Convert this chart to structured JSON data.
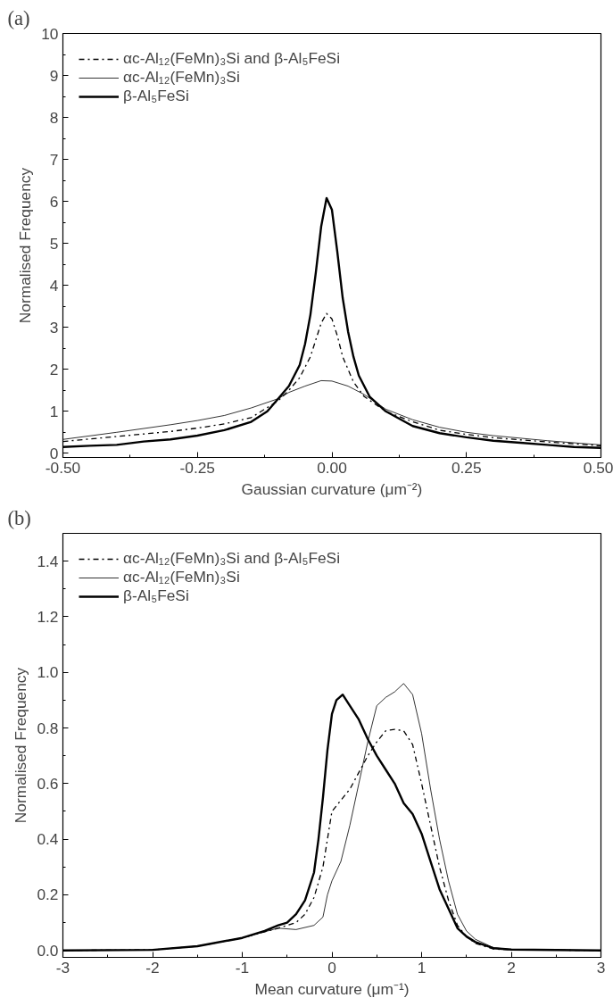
{
  "chart_data": [
    {
      "type": "line",
      "xlabel": "Gaussian curvature (μm⁻²)",
      "ylabel": "Normalised Frequency",
      "annotations": [
        "(a)"
      ],
      "xlim": [
        -0.5,
        0.5
      ],
      "ylim": [
        -0.1,
        10
      ],
      "xticks": [
        {
          "value": -0.5,
          "label": "-0.50"
        },
        {
          "value": -0.375,
          "label": null
        },
        {
          "value": -0.25,
          "label": "-0.25"
        },
        {
          "value": -0.125,
          "label": null
        },
        {
          "value": 0,
          "label": "0.00"
        },
        {
          "value": 0.125,
          "label": null
        },
        {
          "value": 0.25,
          "label": "0.25"
        },
        {
          "value": 0.375,
          "label": null
        },
        {
          "value": 0.5,
          "label": "0.50"
        }
      ],
      "yticks": [
        0,
        {
          "value": 0.5,
          "label": null
        },
        1,
        {
          "value": 1.5,
          "label": null
        },
        2,
        {
          "value": 2.5,
          "label": null
        },
        3,
        {
          "value": 3.5,
          "label": null
        },
        4,
        {
          "value": 4.5,
          "label": null
        },
        5,
        {
          "value": 5.5,
          "label": null
        },
        6,
        {
          "value": 6.5,
          "label": null
        },
        7,
        {
          "value": 7.5,
          "label": null
        },
        8,
        {
          "value": 8.5,
          "label": null
        },
        9,
        {
          "value": 9.5,
          "label": null
        },
        10
      ],
      "grid": false,
      "legend": "top left",
      "series": [
        {
          "name": "αc-Al₁₂(FeMn)₃Si and β-Al₅FeSi",
          "color": "#000000",
          "line_style": "dashdot",
          "x": [
            -0.5,
            -0.4,
            -0.3,
            -0.25,
            -0.2,
            -0.15,
            -0.1,
            -0.08,
            -0.06,
            -0.04,
            -0.03,
            -0.02,
            -0.01,
            0.0,
            0.01,
            0.02,
            0.04,
            0.06,
            0.1,
            0.15,
            0.2,
            0.25,
            0.3,
            0.4,
            0.5
          ],
          "values": [
            0.28,
            0.4,
            0.52,
            0.6,
            0.7,
            0.85,
            1.25,
            1.5,
            1.8,
            2.3,
            2.7,
            3.1,
            3.33,
            3.2,
            2.8,
            2.3,
            1.7,
            1.35,
            1.0,
            0.75,
            0.55,
            0.45,
            0.37,
            0.27,
            0.18
          ]
        },
        {
          "name": "αc-Al₁₂(FeMn)₃Si",
          "color": "#000000",
          "line_style": "solid",
          "x": [
            -0.5,
            -0.4,
            -0.3,
            -0.25,
            -0.2,
            -0.15,
            -0.1,
            -0.08,
            -0.05,
            -0.02,
            0.0,
            0.03,
            0.06,
            0.1,
            0.15,
            0.2,
            0.25,
            0.3,
            0.4,
            0.5
          ],
          "values": [
            0.33,
            0.5,
            0.68,
            0.78,
            0.9,
            1.08,
            1.3,
            1.45,
            1.6,
            1.73,
            1.72,
            1.6,
            1.4,
            1.05,
            0.8,
            0.62,
            0.5,
            0.42,
            0.3,
            0.2
          ]
        },
        {
          "name": "β-Al₅FeSi",
          "color": "#000000",
          "line_style": "solid",
          "x": [
            -0.5,
            -0.45,
            -0.4,
            -0.35,
            -0.3,
            -0.25,
            -0.2,
            -0.15,
            -0.12,
            -0.1,
            -0.08,
            -0.06,
            -0.05,
            -0.04,
            -0.03,
            -0.02,
            -0.01,
            0.0,
            0.01,
            0.02,
            0.03,
            0.04,
            0.05,
            0.07,
            0.1,
            0.15,
            0.2,
            0.25,
            0.3,
            0.35,
            0.4,
            0.45,
            0.5
          ],
          "values": [
            0.15,
            0.18,
            0.2,
            0.28,
            0.33,
            0.42,
            0.55,
            0.75,
            1.0,
            1.3,
            1.6,
            2.1,
            2.6,
            3.3,
            4.3,
            5.4,
            6.08,
            5.8,
            4.8,
            3.7,
            2.9,
            2.3,
            1.85,
            1.35,
            1.0,
            0.65,
            0.48,
            0.38,
            0.3,
            0.25,
            0.2,
            0.15,
            0.13
          ]
        }
      ]
    },
    {
      "type": "line",
      "xlabel": "Mean curvature (μm⁻¹)",
      "ylabel": "Normalised Frequency",
      "annotations": [
        "(b)"
      ],
      "xlim": [
        -3,
        3
      ],
      "ylim": [
        -0.025,
        1.5
      ],
      "xticks": [
        -3,
        {
          "value": -2.5,
          "label": null
        },
        -2,
        {
          "value": -1.5,
          "label": null
        },
        -1,
        {
          "value": -0.5,
          "label": null
        },
        0,
        {
          "value": 0.5,
          "label": null
        },
        1,
        {
          "value": 1.5,
          "label": null
        },
        2,
        {
          "value": 2.5,
          "label": null
        },
        3
      ],
      "yticks": [
        {
          "value": 0,
          "label": "0.0"
        },
        {
          "value": 0.1,
          "label": null
        },
        {
          "value": 0.2,
          "label": "0.2"
        },
        {
          "value": 0.3,
          "label": null
        },
        {
          "value": 0.4,
          "label": "0.4"
        },
        {
          "value": 0.5,
          "label": null
        },
        {
          "value": 0.6,
          "label": "0.6"
        },
        {
          "value": 0.7,
          "label": null
        },
        {
          "value": 0.8,
          "label": "0.8"
        },
        {
          "value": 0.9,
          "label": null
        },
        {
          "value": 1.0,
          "label": "1.0"
        },
        {
          "value": 1.1,
          "label": null
        },
        {
          "value": 1.2,
          "label": "1.2"
        },
        {
          "value": 1.3,
          "label": null
        },
        {
          "value": 1.4,
          "label": "1.4"
        }
      ],
      "grid": false,
      "legend": "top left",
      "series": [
        {
          "name": "αc-Al₁₂(FeMn)₃Si and β-Al₅FeSi",
          "color": "#000000",
          "line_style": "dashdot",
          "x": [
            -3,
            -2,
            -1.5,
            -1,
            -0.6,
            -0.4,
            -0.3,
            -0.2,
            -0.1,
            -0.05,
            0.0,
            0.1,
            0.2,
            0.3,
            0.4,
            0.5,
            0.6,
            0.7,
            0.8,
            0.9,
            1.0,
            1.1,
            1.2,
            1.3,
            1.4,
            1.5,
            1.6,
            1.8,
            2,
            3
          ],
          "values": [
            0,
            0.002,
            0.015,
            0.045,
            0.08,
            0.1,
            0.13,
            0.19,
            0.3,
            0.4,
            0.5,
            0.54,
            0.58,
            0.64,
            0.7,
            0.75,
            0.79,
            0.795,
            0.79,
            0.74,
            0.6,
            0.45,
            0.3,
            0.18,
            0.09,
            0.05,
            0.025,
            0.005,
            0.002,
            0
          ]
        },
        {
          "name": "αc-Al₁₂(FeMn)₃Si",
          "color": "#000000",
          "line_style": "solid",
          "x": [
            -3,
            -2,
            -1.5,
            -1,
            -0.6,
            -0.4,
            -0.2,
            -0.1,
            -0.05,
            0.0,
            0.1,
            0.2,
            0.3,
            0.4,
            0.5,
            0.6,
            0.7,
            0.8,
            0.9,
            1.0,
            1.1,
            1.2,
            1.3,
            1.4,
            1.5,
            1.6,
            1.8,
            2,
            3
          ],
          "values": [
            0,
            0.002,
            0.015,
            0.045,
            0.08,
            0.075,
            0.09,
            0.12,
            0.2,
            0.25,
            0.32,
            0.45,
            0.6,
            0.75,
            0.88,
            0.91,
            0.93,
            0.96,
            0.92,
            0.78,
            0.58,
            0.4,
            0.25,
            0.13,
            0.07,
            0.04,
            0.01,
            0.003,
            0
          ]
        },
        {
          "name": "β-Al₅FeSi",
          "color": "#000000",
          "line_style": "solid",
          "x": [
            -3,
            -2,
            -1.5,
            -1,
            -0.75,
            -0.6,
            -0.5,
            -0.4,
            -0.3,
            -0.2,
            -0.15,
            -0.1,
            -0.05,
            0.0,
            0.05,
            0.12,
            0.2,
            0.3,
            0.4,
            0.5,
            0.6,
            0.7,
            0.8,
            0.9,
            1.0,
            1.1,
            1.2,
            1.3,
            1.4,
            1.5,
            1.6,
            1.8,
            2.0,
            3
          ],
          "values": [
            0,
            0.002,
            0.015,
            0.045,
            0.07,
            0.09,
            0.1,
            0.13,
            0.18,
            0.28,
            0.4,
            0.55,
            0.72,
            0.85,
            0.9,
            0.92,
            0.88,
            0.83,
            0.76,
            0.7,
            0.65,
            0.6,
            0.53,
            0.49,
            0.42,
            0.32,
            0.22,
            0.15,
            0.08,
            0.05,
            0.03,
            0.008,
            0.003,
            0
          ]
        }
      ]
    }
  ]
}
